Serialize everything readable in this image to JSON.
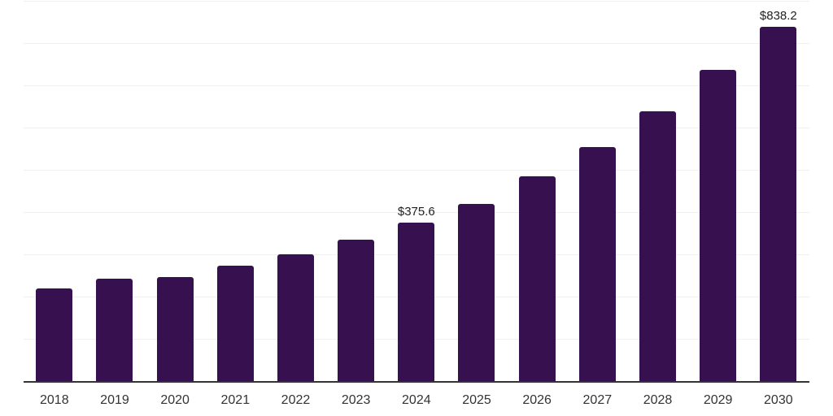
{
  "chart_data": {
    "type": "bar",
    "title": "",
    "xlabel": "",
    "ylabel": "",
    "categories": [
      "2018",
      "2019",
      "2020",
      "2021",
      "2022",
      "2023",
      "2024",
      "2025",
      "2026",
      "2027",
      "2028",
      "2029",
      "2030"
    ],
    "values": [
      219,
      242,
      246,
      274,
      300,
      335,
      375.6,
      420,
      484,
      554,
      639,
      736,
      838.2
    ],
    "data_labels": [
      {
        "category": "2024",
        "text": "$375.6"
      },
      {
        "category": "2030",
        "text": "$838.2"
      }
    ],
    "ylim": [
      0,
      900
    ],
    "grid_step": 100,
    "grid_on": true,
    "y_axis_labels_visible": false,
    "legend_position": "none",
    "colors": {
      "bar": "#37114F",
      "axis_line": "#333333",
      "gridline": "#F0F0F0",
      "tick_label": "#333333",
      "data_label": "#1F1F1F",
      "background": "#FFFFFF"
    }
  }
}
